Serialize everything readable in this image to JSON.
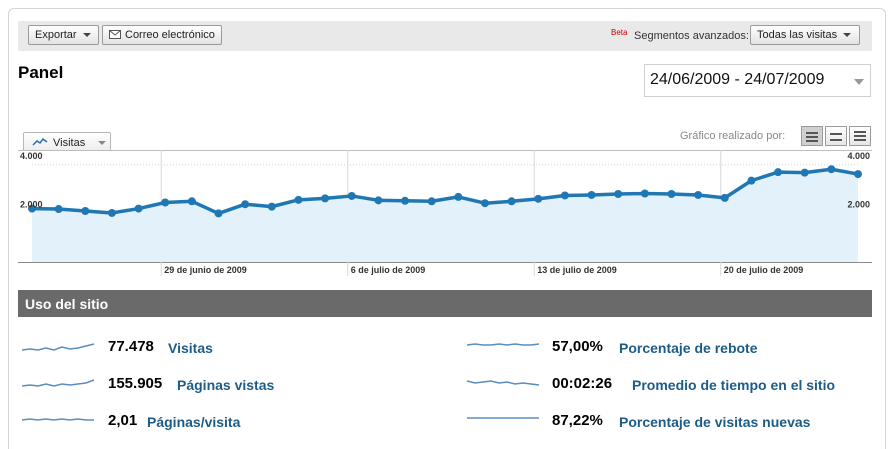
{
  "toolbar": {
    "export_label": "Exportar",
    "email_label": "Correo electrónico",
    "beta_label": "Beta",
    "segments_label": "Segmentos avanzados:",
    "segment_selected": "Todas las visitas"
  },
  "header": {
    "title": "Panel",
    "date_range": "24/06/2009 - 24/07/2009"
  },
  "chart_controls": {
    "metric_tab": "Visitas",
    "graphed_by_label": "Gráfico realizado por:"
  },
  "chart_data": {
    "type": "area",
    "series": [
      {
        "values": [
          2200,
          2180,
          2100,
          2020,
          2200,
          2450,
          2500,
          2000,
          2380,
          2280,
          2560,
          2620,
          2720,
          2540,
          2520,
          2500,
          2680,
          2420,
          2500,
          2600,
          2740,
          2760,
          2800,
          2820,
          2800,
          2760,
          2640,
          3350,
          3700,
          3680,
          3820,
          3620
        ]
      }
    ],
    "x_tick_labels": [
      "29 de junio de 2009",
      "6 de julio de 2009",
      "13 de julio de 2009",
      "20 de julio de 2009"
    ],
    "x_tick_indices": [
      5,
      12,
      19,
      26
    ],
    "y_tick_labels": [
      "4.000",
      "2.000"
    ],
    "y_tick_values": [
      4000,
      2000
    ],
    "ylim": [
      0,
      4200
    ],
    "colors": {
      "line": "#1f77b4",
      "fill": "#e3f1fa"
    }
  },
  "site_usage": {
    "title": "Uso del sitio",
    "metrics": [
      {
        "value": "77.478",
        "label": "Visitas"
      },
      {
        "value": "155.905",
        "label": "Páginas vistas"
      },
      {
        "value": "2,01",
        "label": "Páginas/visita"
      },
      {
        "value": "57,00%",
        "label": "Porcentaje de rebote"
      },
      {
        "value": "00:02:26",
        "label": "Promedio de tiempo en el sitio"
      },
      {
        "value": "87,22%",
        "label": "Porcentaje de visitas nuevas"
      }
    ]
  }
}
